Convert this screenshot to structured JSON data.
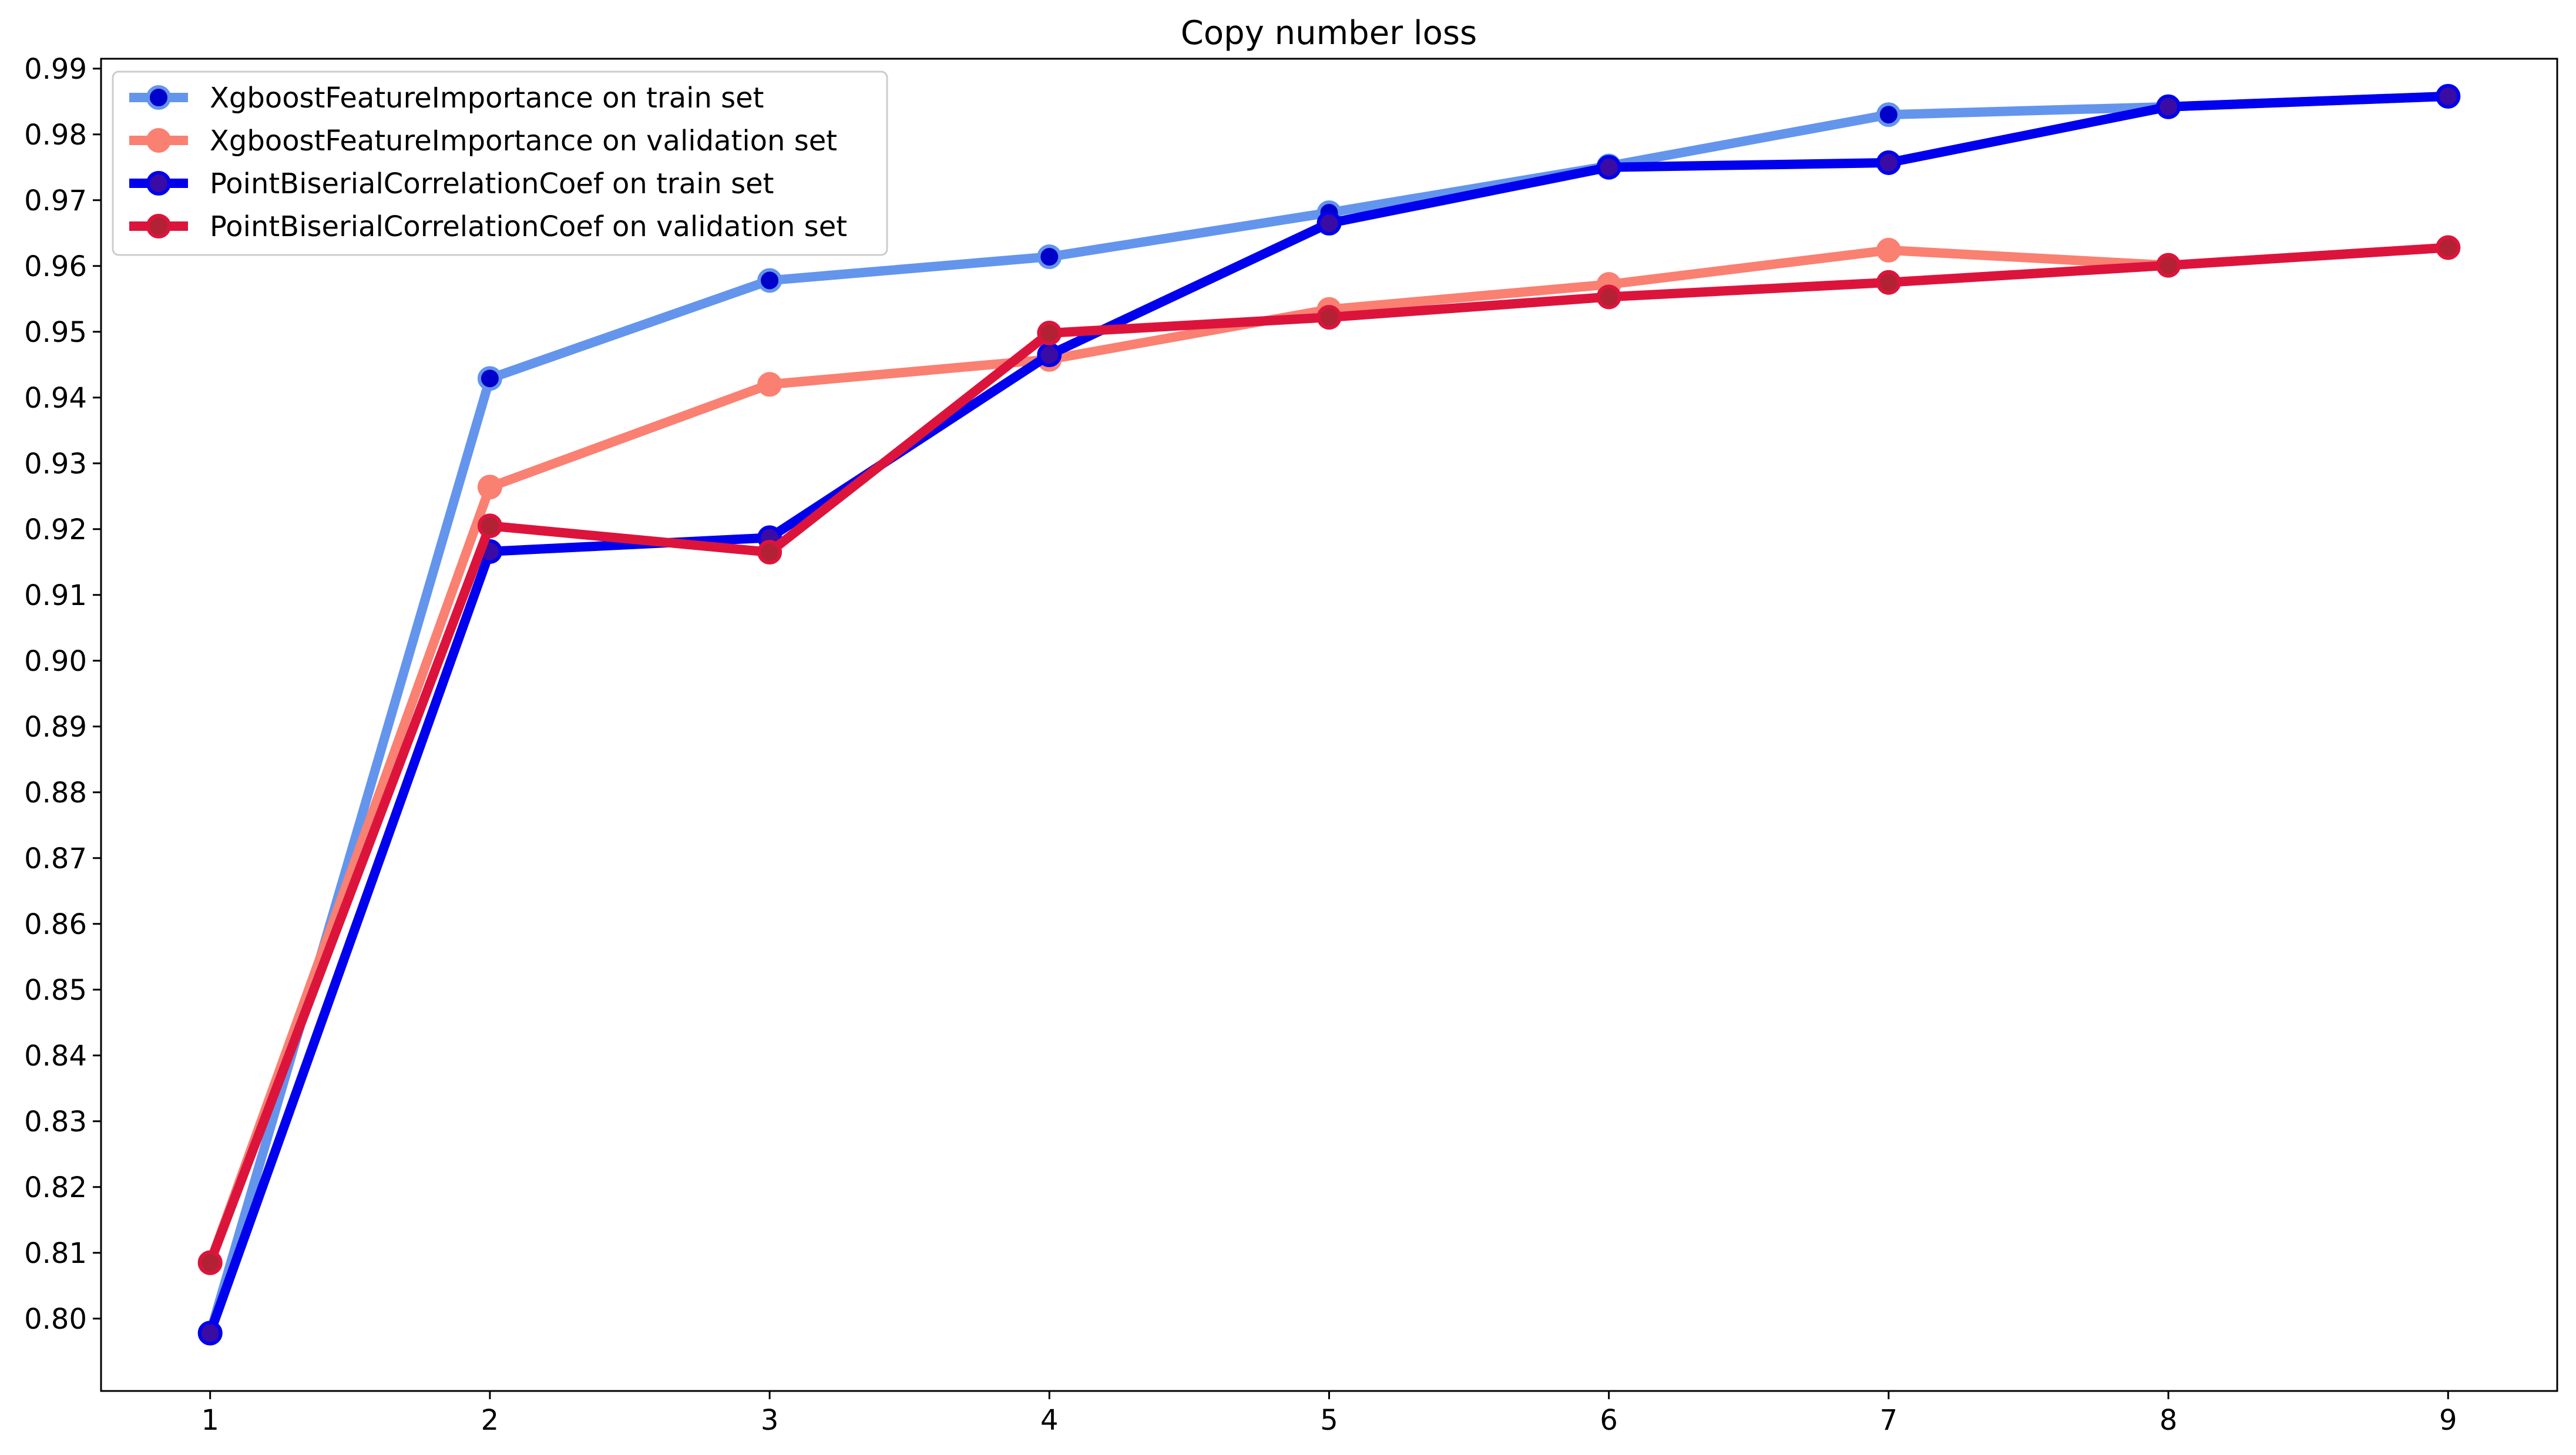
{
  "chart_data": {
    "type": "line",
    "title": "Copy number loss",
    "xlabel": "",
    "ylabel": "",
    "x": [
      1,
      2,
      3,
      4,
      5,
      6,
      7,
      8,
      9
    ],
    "xlim": [
      0.61,
      9.39
    ],
    "ylim": [
      0.789,
      0.9915
    ],
    "xticks": [
      "1",
      "2",
      "3",
      "4",
      "5",
      "6",
      "7",
      "8",
      "9"
    ],
    "yticks": [
      "0.80",
      "0.81",
      "0.82",
      "0.83",
      "0.84",
      "0.85",
      "0.86",
      "0.87",
      "0.88",
      "0.89",
      "0.90",
      "0.91",
      "0.92",
      "0.93",
      "0.94",
      "0.95",
      "0.96",
      "0.97",
      "0.98",
      "0.99"
    ],
    "grid": false,
    "legend_position": "top-left",
    "series": [
      {
        "name": "XgboostFeatureImportance on train set",
        "line_color": "#6495ED",
        "marker_color": "#0000CD",
        "values": [
          0.7978,
          0.9429,
          0.9578,
          0.9614,
          0.9681,
          0.9752,
          0.983,
          0.9842,
          0.9858
        ]
      },
      {
        "name": "XgboostFeatureImportance on validation set",
        "line_color": "#FA8072",
        "marker_color": "#FA8072",
        "values": [
          0.8085,
          0.9264,
          0.942,
          0.9458,
          0.9534,
          0.9572,
          0.9624,
          0.9601,
          0.9628
        ]
      },
      {
        "name": "PointBiserialCorrelationCoef on train set",
        "line_color": "#0000EE",
        "marker_color": "#3A0CA3",
        "values": [
          0.7978,
          0.9166,
          0.9187,
          0.9465,
          0.9665,
          0.975,
          0.9757,
          0.9842,
          0.9858
        ]
      },
      {
        "name": "PointBiserialCorrelationCoef on validation set",
        "line_color": "#DC143C",
        "marker_color": "#B22234",
        "values": [
          0.8085,
          0.9205,
          0.9165,
          0.9498,
          0.9522,
          0.9553,
          0.9575,
          0.9601,
          0.9628
        ]
      }
    ]
  }
}
